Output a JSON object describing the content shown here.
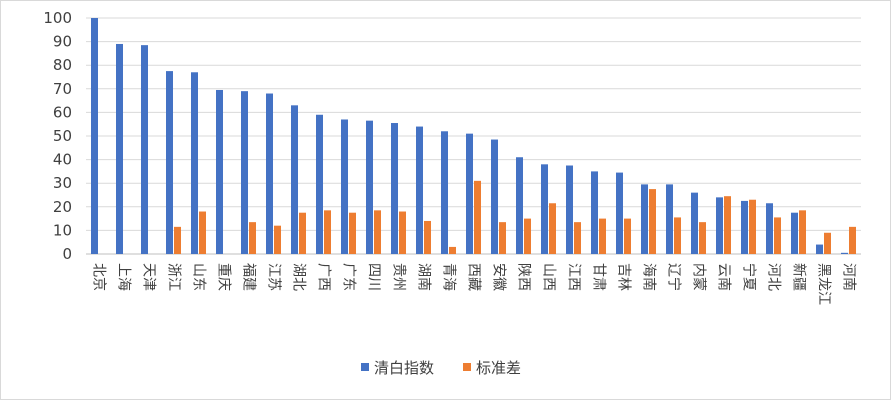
{
  "chart_data": {
    "type": "bar",
    "title": "",
    "xlabel": "",
    "ylabel": "",
    "ylim": [
      0,
      100
    ],
    "yticks": [
      0,
      10,
      20,
      30,
      40,
      50,
      60,
      70,
      80,
      90,
      100
    ],
    "grid": true,
    "legend_position": "bottom",
    "categories": [
      "北京",
      "上海",
      "天津",
      "浙江",
      "山东",
      "重庆",
      "福建",
      "江苏",
      "湖北",
      "广西",
      "广东",
      "四川",
      "贵州",
      "湖南",
      "青海",
      "西藏",
      "安徽",
      "陕西",
      "山西",
      "江西",
      "甘肃",
      "吉林",
      "海南",
      "辽宁",
      "内蒙",
      "云南",
      "宁夏",
      "河北",
      "新疆",
      "黑龙江",
      "河南"
    ],
    "series": [
      {
        "name": "清白指数",
        "color": "#4472c4",
        "values": [
          100,
          89,
          88.5,
          77.5,
          77,
          69.5,
          69,
          68,
          63,
          59,
          57,
          56.5,
          55.5,
          54,
          52,
          51,
          48.5,
          41,
          38,
          37.5,
          35,
          34.5,
          29.5,
          29.5,
          26,
          24,
          22.5,
          21.5,
          17.5,
          4,
          0.5
        ]
      },
      {
        "name": "标准差",
        "color": "#ed7d31",
        "values": [
          0,
          0,
          0,
          11.5,
          18,
          0,
          13.5,
          12,
          17.5,
          18.5,
          17.5,
          18.5,
          18,
          14,
          3,
          31,
          13.5,
          15,
          21.5,
          13.5,
          15,
          15,
          27.5,
          15.5,
          13.5,
          24.5,
          23,
          15.5,
          18.5,
          9,
          11.5
        ]
      }
    ]
  }
}
